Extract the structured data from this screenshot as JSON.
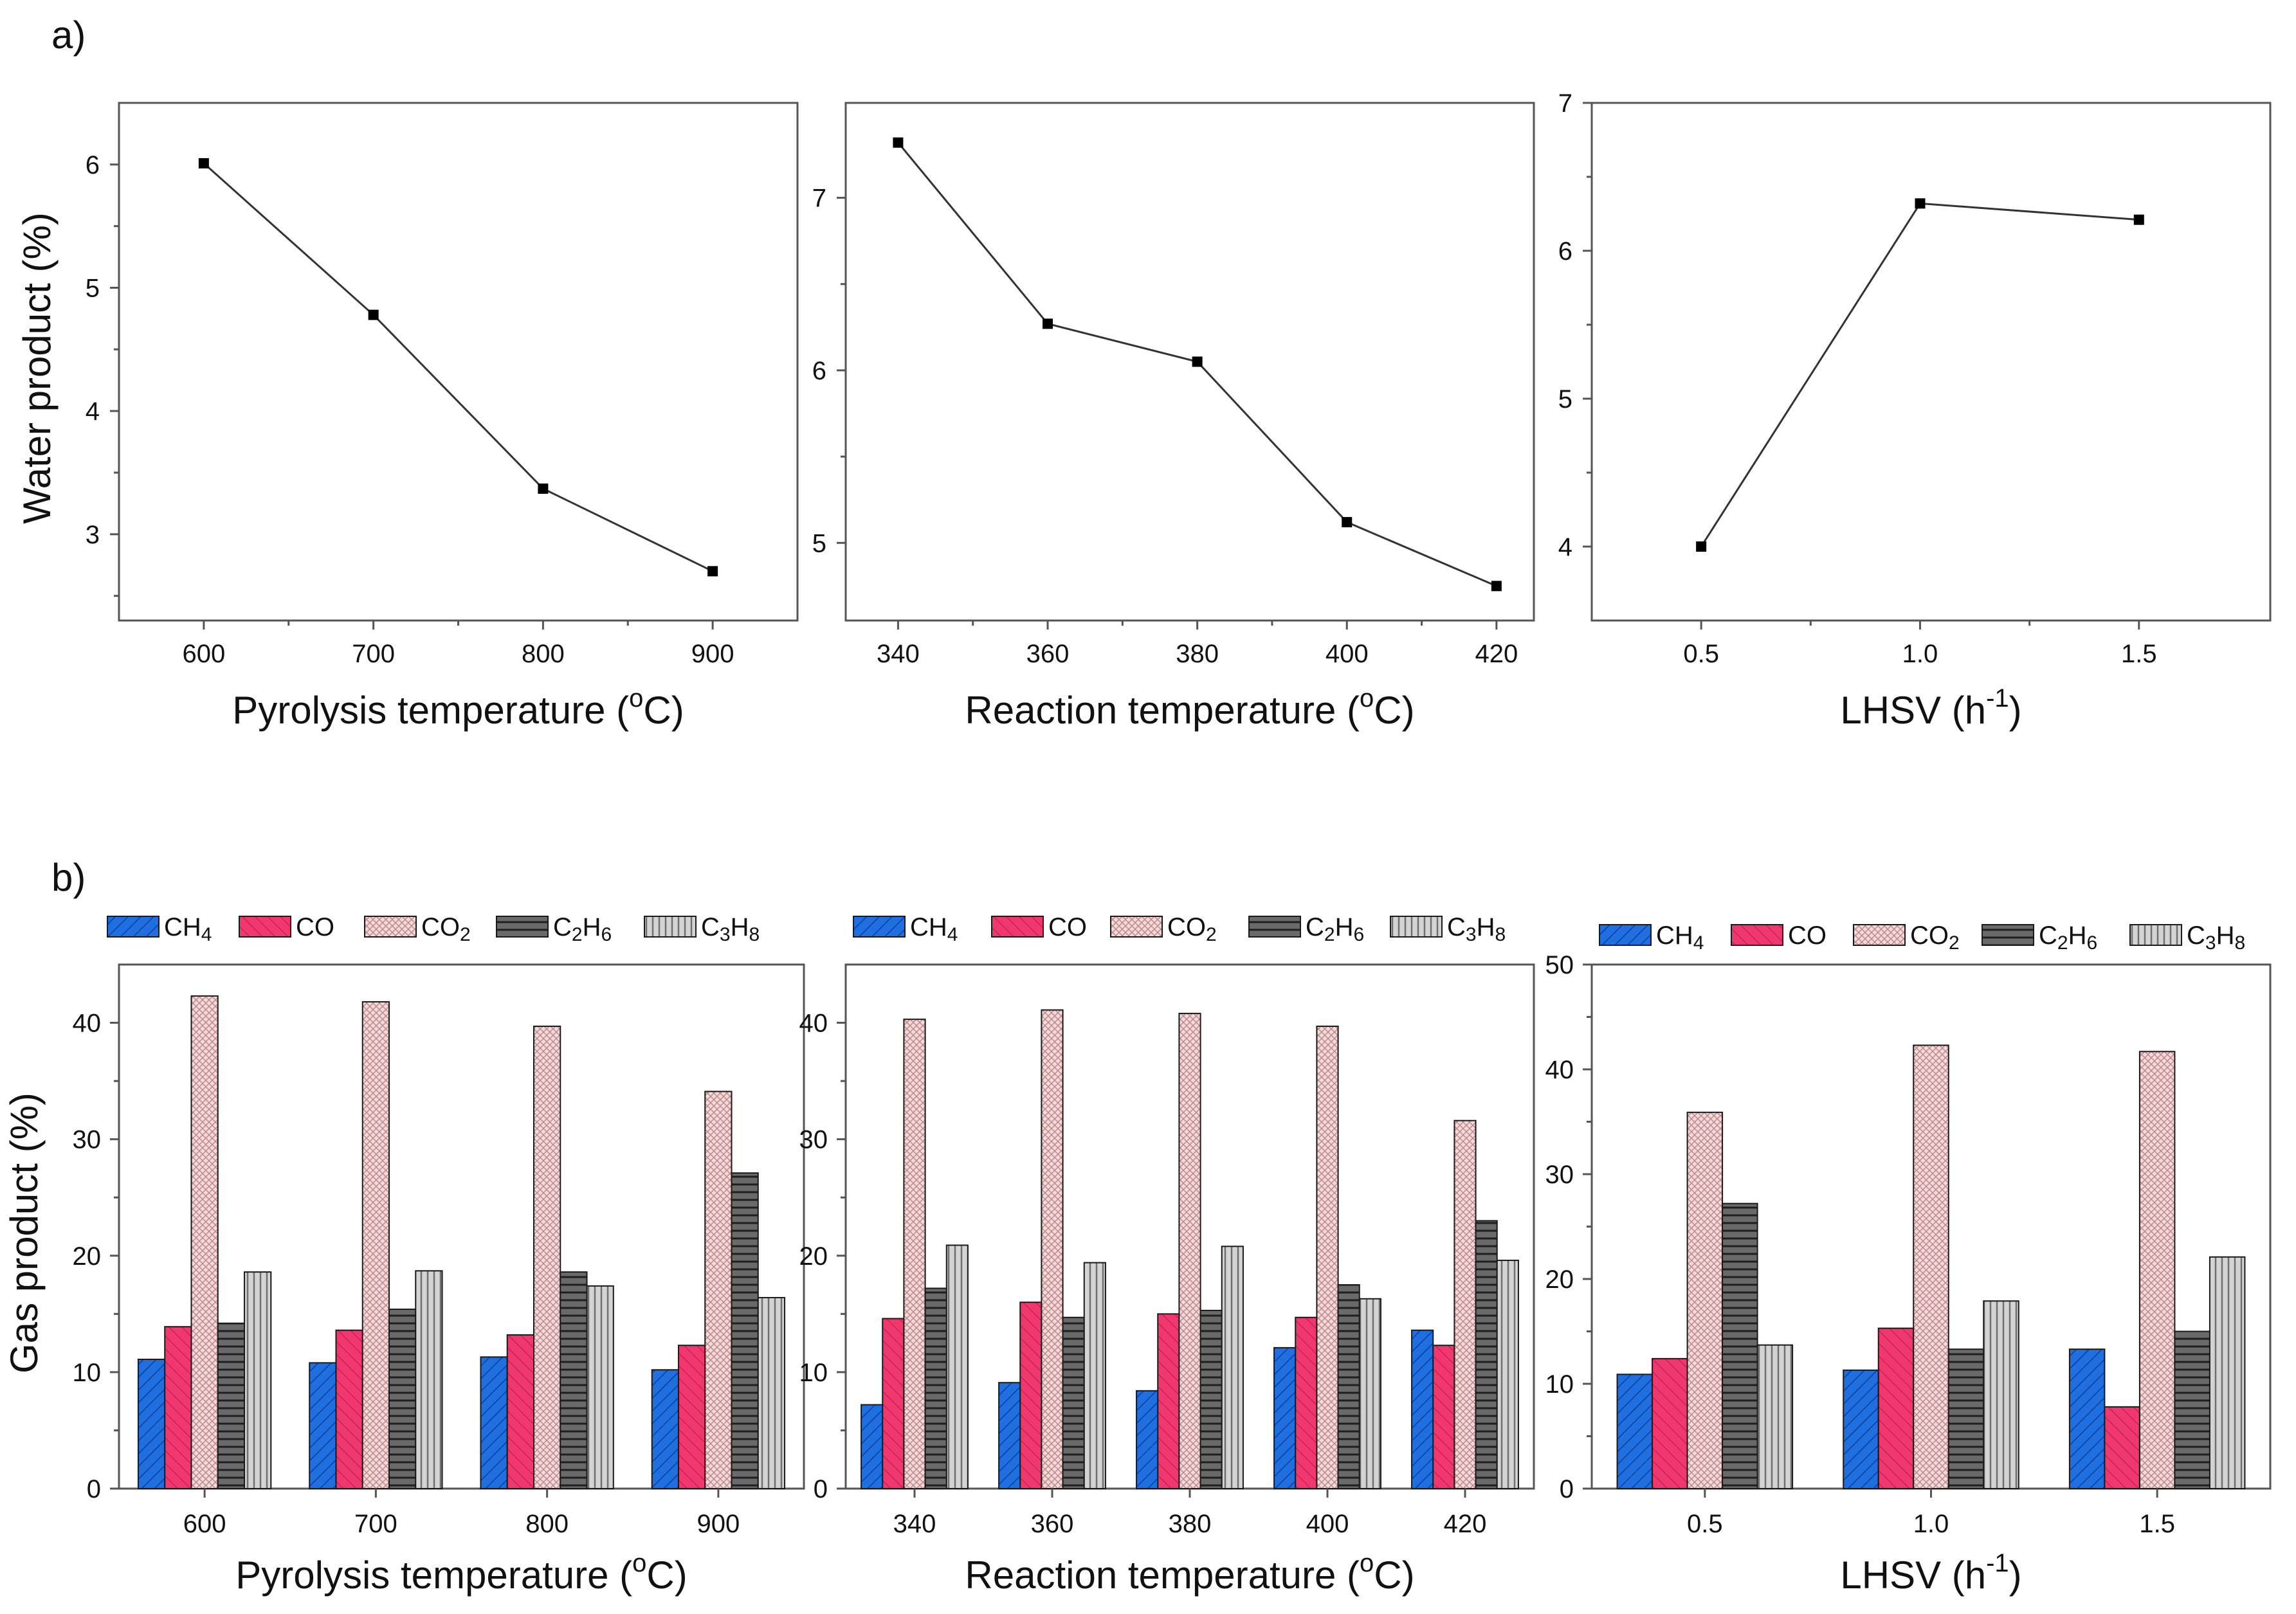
{
  "panel_labels": [
    "a)",
    "b)"
  ],
  "chart_data": [
    {
      "type": "line",
      "panel": "a",
      "x": [
        600,
        700,
        800,
        900
      ],
      "y": [
        6.01,
        4.78,
        3.37,
        2.7
      ],
      "xticks": [
        "600",
        "700",
        "800",
        "900"
      ],
      "yticks": [
        "3",
        "4",
        "5",
        "6"
      ],
      "xlim": [
        550,
        950
      ],
      "ylim": [
        2.3,
        6.5
      ],
      "xlabel": "Pyrolysis temperature (",
      "xlabel_sup": "o",
      "xlabel_tail": "C)",
      "ylabel": "Water product (%)"
    },
    {
      "type": "line",
      "panel": "a",
      "x": [
        340,
        360,
        380,
        400,
        420
      ],
      "y": [
        7.32,
        6.27,
        6.05,
        5.12,
        4.75
      ],
      "xticks": [
        "340",
        "360",
        "380",
        "400",
        "420"
      ],
      "yticks": [
        "5",
        "6",
        "7"
      ],
      "xlim": [
        333,
        425
      ],
      "ylim": [
        4.55,
        7.55
      ],
      "xlabel": "Reaction temperature (",
      "xlabel_sup": "o",
      "xlabel_tail": "C)",
      "ylabel": ""
    },
    {
      "type": "line",
      "panel": "a",
      "x": [
        0.5,
        1.0,
        1.5
      ],
      "y": [
        4.0,
        6.32,
        6.21
      ],
      "xticks": [
        "0.5",
        "1.0",
        "1.5"
      ],
      "yticks": [
        "4",
        "5",
        "6",
        "7"
      ],
      "xlim": [
        0.25,
        1.8
      ],
      "ylim": [
        3.5,
        7.0
      ],
      "xlabel": "LHSV (h",
      "xlabel_sup": "-1",
      "xlabel_tail": ")",
      "ylabel": ""
    },
    {
      "type": "bar",
      "panel": "b",
      "categories": [
        "600",
        "700",
        "800",
        "900"
      ],
      "series": [
        {
          "name": "CH4",
          "values": [
            11.1,
            10.8,
            11.3,
            10.2
          ]
        },
        {
          "name": "CO",
          "values": [
            13.9,
            13.6,
            13.2,
            12.3
          ]
        },
        {
          "name": "CO2",
          "values": [
            42.3,
            41.8,
            39.7,
            34.1
          ]
        },
        {
          "name": "C2H6",
          "values": [
            14.2,
            15.4,
            18.6,
            27.1
          ]
        },
        {
          "name": "C3H8",
          "values": [
            18.6,
            18.7,
            17.4,
            16.4
          ]
        }
      ],
      "yticks": [
        "0",
        "10",
        "20",
        "30",
        "40"
      ],
      "ylim": [
        0,
        45
      ],
      "xlabel": "Pyrolysis temperature (",
      "xlabel_sup": "o",
      "xlabel_tail": "C)",
      "ylabel": "Gas product (%)"
    },
    {
      "type": "bar",
      "panel": "b",
      "categories": [
        "340",
        "360",
        "380",
        "400",
        "420"
      ],
      "series": [
        {
          "name": "CH4",
          "values": [
            7.2,
            9.1,
            8.4,
            12.1,
            13.6
          ]
        },
        {
          "name": "CO",
          "values": [
            14.6,
            16.0,
            15.0,
            14.7,
            12.3
          ]
        },
        {
          "name": "CO2",
          "values": [
            40.3,
            41.1,
            40.8,
            39.7,
            31.6
          ]
        },
        {
          "name": "C2H6",
          "values": [
            17.2,
            14.7,
            15.3,
            17.5,
            23.0
          ]
        },
        {
          "name": "C3H8",
          "values": [
            20.9,
            19.4,
            20.8,
            16.3,
            19.6
          ]
        }
      ],
      "yticks": [
        "0",
        "10",
        "20",
        "30",
        "40"
      ],
      "ylim": [
        0,
        45
      ],
      "xlabel": "Reaction temperature (",
      "xlabel_sup": "o",
      "xlabel_tail": "C)",
      "ylabel": ""
    },
    {
      "type": "bar",
      "panel": "b",
      "categories": [
        "0.5",
        "1.0",
        "1.5"
      ],
      "series": [
        {
          "name": "CH4",
          "values": [
            10.9,
            11.3,
            13.3
          ]
        },
        {
          "name": "CO",
          "values": [
            12.4,
            15.3,
            7.8
          ]
        },
        {
          "name": "CO2",
          "values": [
            35.9,
            42.3,
            41.7
          ]
        },
        {
          "name": "C2H6",
          "values": [
            27.2,
            13.3,
            15.0
          ]
        },
        {
          "name": "C3H8",
          "values": [
            13.7,
            17.9,
            22.1
          ]
        }
      ],
      "yticks": [
        "0",
        "10",
        "20",
        "30",
        "40",
        "50"
      ],
      "ylim": [
        0,
        50
      ],
      "xlabel": "LHSV (h",
      "xlabel_sup": "-1",
      "xlabel_tail": ")",
      "ylabel": ""
    }
  ],
  "legend": [
    {
      "base": "CH",
      "sub": "4"
    },
    {
      "base": "CO",
      "sub": ""
    },
    {
      "base": "CO",
      "sub": "2"
    },
    {
      "base": "C",
      "sub": "2",
      "base2": "H",
      "sub2": "6"
    },
    {
      "base": "C",
      "sub": "3",
      "base2": "H",
      "sub2": "8"
    }
  ],
  "colors": {
    "ch4": "#1f6fe0",
    "co": "#f0386e",
    "co2": "#f4cfcf",
    "c2h6": "#5a5a5a",
    "c3h8": "#c4c4c4"
  }
}
